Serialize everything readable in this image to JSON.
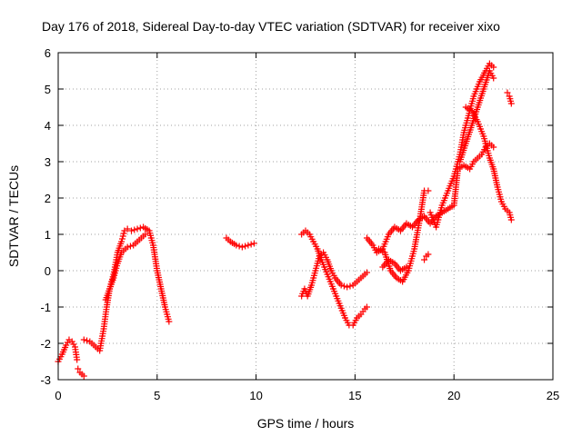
{
  "chart_data": {
    "type": "scatter",
    "title": "Day 176 of 2018, Sidereal Day-to-day VTEC variation (SDTVAR) for receiver xixo",
    "xlabel": "GPS time / hours",
    "ylabel": "SDTVAR / TECUs",
    "xlim": [
      0,
      25
    ],
    "ylim": [
      -3,
      6
    ],
    "x_ticks": [
      0,
      5,
      10,
      15,
      20,
      25
    ],
    "y_ticks": [
      -3,
      -2,
      -1,
      0,
      1,
      2,
      3,
      4,
      5,
      6
    ],
    "grid": true,
    "marker": "+",
    "color": "#ff0000",
    "series": [
      {
        "name": "s1",
        "x": [
          0.0,
          0.2,
          0.4,
          0.55,
          0.7,
          0.85,
          0.95
        ],
        "y": [
          -2.5,
          -2.3,
          -2.05,
          -1.9,
          -1.95,
          -2.1,
          -2.45
        ]
      },
      {
        "name": "s2",
        "x": [
          1.0,
          1.1,
          1.2,
          1.3
        ],
        "y": [
          -2.7,
          -2.8,
          -2.85,
          -2.9
        ]
      },
      {
        "name": "s3",
        "x": [
          1.3,
          1.6,
          1.9,
          2.1,
          2.3,
          2.45,
          2.6,
          2.8,
          3.0,
          3.2,
          3.35,
          3.5,
          3.7,
          4.0,
          4.3,
          4.6,
          4.8,
          5.0,
          5.2,
          5.4,
          5.6
        ],
        "y": [
          -1.9,
          -1.95,
          -2.1,
          -2.2,
          -1.6,
          -1.0,
          -0.5,
          -0.1,
          0.5,
          0.8,
          1.1,
          1.15,
          1.1,
          1.15,
          1.2,
          1.1,
          0.7,
          0.0,
          -0.5,
          -1.0,
          -1.4
        ]
      },
      {
        "name": "s4",
        "x": [
          2.4,
          2.6,
          2.8,
          3.0,
          3.2,
          3.5,
          3.8,
          4.0,
          4.2,
          4.4
        ],
        "y": [
          -0.8,
          -0.5,
          -0.2,
          0.2,
          0.5,
          0.65,
          0.7,
          0.8,
          0.9,
          1.0
        ]
      },
      {
        "name": "s5",
        "x": [
          8.5,
          8.7,
          9.0,
          9.3,
          9.6,
          9.9
        ],
        "y": [
          0.9,
          0.8,
          0.7,
          0.65,
          0.7,
          0.75
        ]
      },
      {
        "name": "s6",
        "x": [
          12.3,
          12.5,
          12.7,
          12.9,
          13.1,
          13.3,
          13.6,
          13.9,
          14.2,
          14.5,
          14.7,
          14.9,
          15.1,
          15.3,
          15.5,
          15.6
        ],
        "y": [
          1.0,
          1.1,
          1.0,
          0.8,
          0.6,
          0.3,
          -0.1,
          -0.5,
          -0.9,
          -1.3,
          -1.5,
          -1.5,
          -1.3,
          -1.2,
          -1.05,
          -1.0
        ]
      },
      {
        "name": "s7",
        "x": [
          12.3,
          12.45,
          12.6,
          12.8,
          13.0,
          13.2,
          13.4,
          13.6,
          13.8,
          14.0,
          14.3,
          14.6,
          14.9,
          15.1,
          15.3,
          15.5,
          15.6
        ],
        "y": [
          -0.7,
          -0.5,
          -0.7,
          -0.4,
          0.0,
          0.4,
          0.5,
          0.3,
          0.0,
          -0.2,
          -0.4,
          -0.45,
          -0.4,
          -0.3,
          -0.2,
          -0.1,
          -0.05
        ]
      },
      {
        "name": "s8",
        "x": [
          15.6,
          15.9,
          16.1,
          16.4,
          16.7,
          17.0,
          17.3,
          17.6,
          17.9,
          18.2,
          18.5,
          18.8,
          19.1,
          19.4,
          19.7,
          20.0,
          20.2,
          20.5,
          20.8,
          21.0,
          21.2,
          21.4,
          21.6,
          21.8,
          22.0
        ],
        "y": [
          0.9,
          0.7,
          0.5,
          0.6,
          1.0,
          1.2,
          1.1,
          1.3,
          1.2,
          1.4,
          1.5,
          1.3,
          1.5,
          1.6,
          1.7,
          1.8,
          2.8,
          2.9,
          2.8,
          3.0,
          3.1,
          3.2,
          3.4,
          3.5,
          3.4
        ]
      },
      {
        "name": "s9",
        "x": [
          16.2,
          16.5,
          16.8,
          17.1,
          17.4,
          17.7,
          18.0,
          18.3,
          18.5,
          18.7
        ],
        "y": [
          0.6,
          0.5,
          0.0,
          -0.2,
          -0.3,
          0.0,
          0.6,
          1.5,
          2.2,
          2.2
        ]
      },
      {
        "name": "s10",
        "x": [
          16.4,
          16.7,
          17.0,
          17.3,
          17.6
        ],
        "y": [
          0.1,
          0.3,
          0.2,
          0.0,
          0.1
        ]
      },
      {
        "name": "s11",
        "x": [
          18.5,
          18.6,
          18.7
        ],
        "y": [
          0.3,
          0.4,
          0.45
        ]
      },
      {
        "name": "s12",
        "x": [
          18.8,
          19.1,
          19.4,
          19.7,
          20.0,
          20.3,
          20.5,
          20.8,
          21.0,
          21.3,
          21.6,
          21.8,
          22.0
        ],
        "y": [
          1.6,
          1.2,
          1.8,
          2.2,
          2.6,
          3.2,
          3.8,
          4.4,
          4.8,
          5.2,
          5.5,
          5.7,
          5.6
        ]
      },
      {
        "name": "s13",
        "x": [
          20.3,
          20.6,
          20.9,
          21.2,
          21.5,
          21.8,
          22.0
        ],
        "y": [
          3.0,
          3.5,
          4.0,
          4.5,
          5.0,
          5.5,
          5.3
        ]
      },
      {
        "name": "s14",
        "x": [
          20.6,
          20.9,
          21.2,
          21.5,
          21.8,
          22.0,
          22.2,
          22.4,
          22.6,
          22.8,
          22.9
        ],
        "y": [
          4.5,
          4.4,
          4.1,
          3.7,
          3.1,
          2.8,
          2.3,
          1.9,
          1.7,
          1.6,
          1.4
        ]
      },
      {
        "name": "s15",
        "x": [
          22.7,
          22.8,
          22.9
        ],
        "y": [
          4.9,
          4.8,
          4.6
        ]
      }
    ]
  }
}
